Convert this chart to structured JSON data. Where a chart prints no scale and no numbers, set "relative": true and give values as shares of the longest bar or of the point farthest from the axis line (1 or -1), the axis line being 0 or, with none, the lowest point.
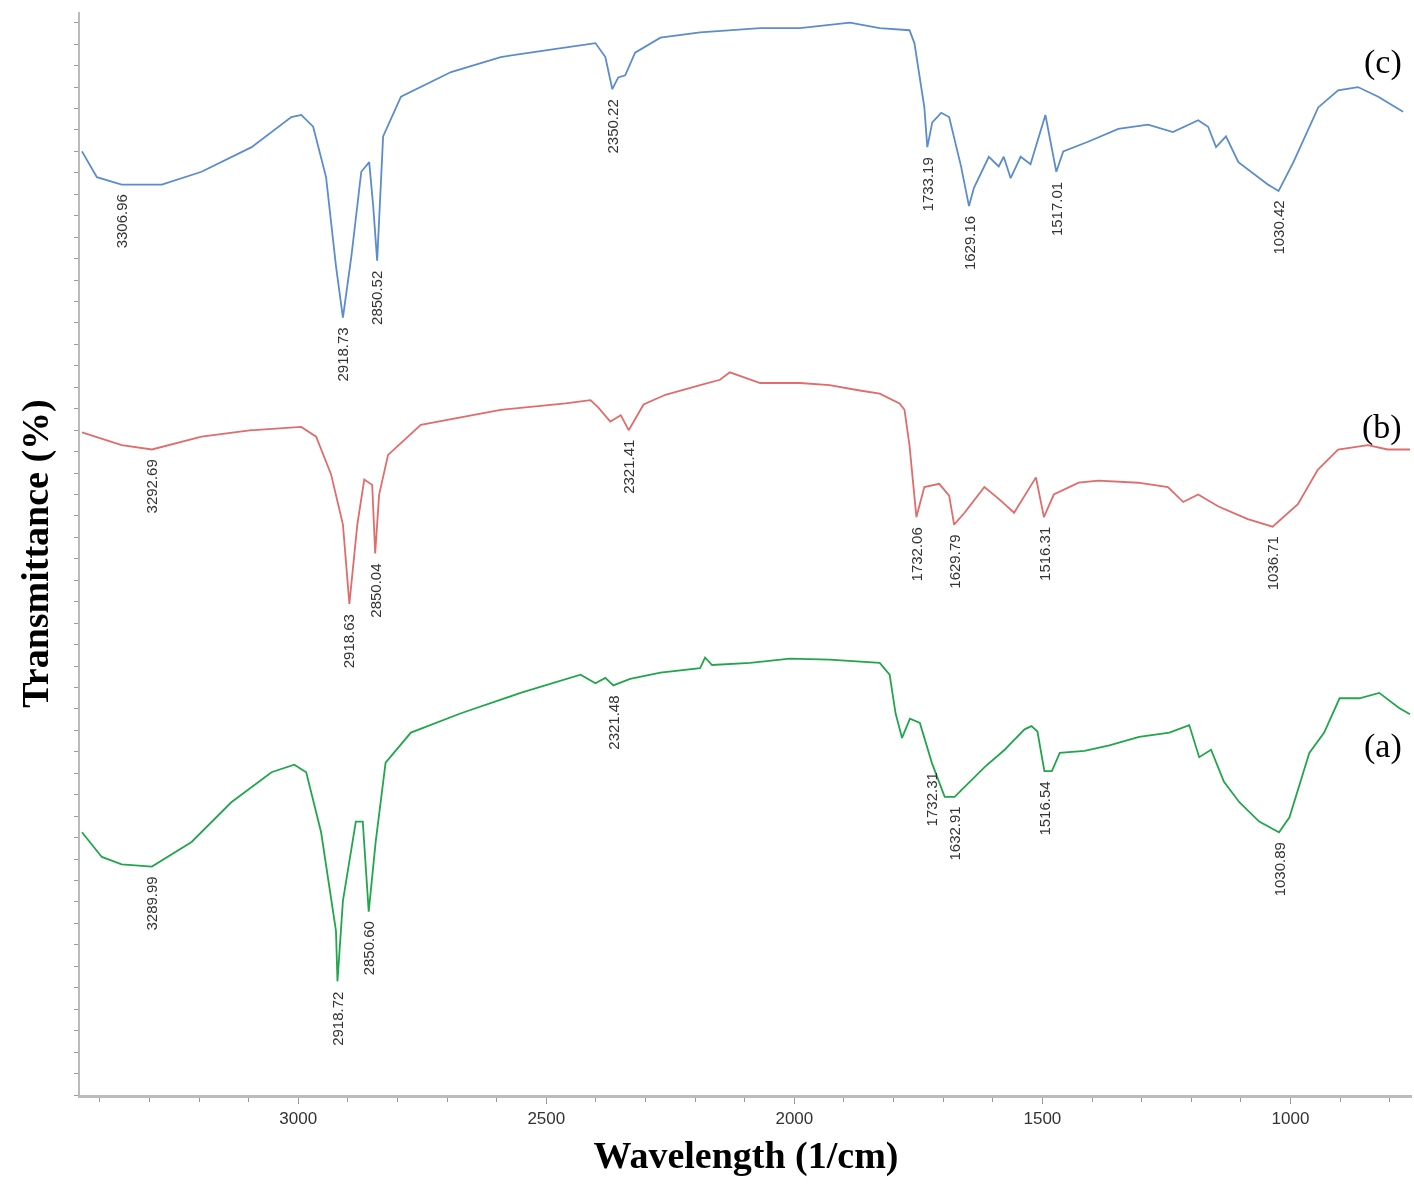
{
  "chart_data": {
    "type": "line",
    "relative": true,
    "xlabel": "Wavelength (1/cm)",
    "ylabel": "Transmittance (%)",
    "xlim": [
      3440,
      755
    ],
    "xticks": [
      3000,
      2500,
      2000,
      1500,
      1000
    ],
    "grid": false,
    "legend": false,
    "marker": "none",
    "line_style": "solid",
    "series": [
      {
        "name": "(c)",
        "color": "#5b8ccb",
        "x": [
          3436,
          3406,
          3356,
          3275,
          3195,
          3094,
          3014,
          2994,
          2970,
          2944,
          2924,
          2910,
          2893,
          2873,
          2857,
          2849,
          2841,
          2829,
          2793,
          2692,
          2592,
          2491,
          2401,
          2381,
          2367,
          2355,
          2341,
          2321,
          2270,
          2190,
          2069,
          1989,
          1888,
          1828,
          1768,
          1758,
          1738,
          1732,
          1722,
          1704,
          1688,
          1664,
          1648,
          1638,
          1608,
          1588,
          1578,
          1564,
          1544,
          1524,
          1494,
          1472,
          1458,
          1408,
          1347,
          1287,
          1237,
          1186,
          1166,
          1150,
          1130,
          1105,
          1045,
          1024,
          994,
          944,
          904,
          864,
          823,
          773
        ],
        "values": [
          0.88,
          0.856,
          0.849,
          0.849,
          0.861,
          0.884,
          0.912,
          0.914,
          0.903,
          0.856,
          0.773,
          0.725,
          0.782,
          0.861,
          0.87,
          0.829,
          0.778,
          0.894,
          0.931,
          0.954,
          0.968,
          0.975,
          0.981,
          0.968,
          0.938,
          0.949,
          0.951,
          0.972,
          0.986,
          0.991,
          0.995,
          0.995,
          1,
          0.995,
          0.993,
          0.981,
          0.921,
          0.884,
          0.907,
          0.916,
          0.912,
          0.866,
          0.829,
          0.846,
          0.875,
          0.866,
          0.875,
          0.855,
          0.875,
          0.868,
          0.914,
          0.861,
          0.88,
          0.889,
          0.901,
          0.905,
          0.898,
          0.909,
          0.903,
          0.884,
          0.894,
          0.87,
          0.849,
          0.843,
          0.87,
          0.921,
          0.937,
          0.94,
          0.931,
          0.917
        ]
      },
      {
        "name": "(b)",
        "color": "#e06c6c",
        "x": [
          3436,
          3356,
          3295,
          3195,
          3094,
          2994,
          2964,
          2934,
          2910,
          2897,
          2881,
          2867,
          2851,
          2845,
          2837,
          2819,
          2753,
          2592,
          2461,
          2411,
          2395,
          2371,
          2350,
          2334,
          2304,
          2260,
          2190,
          2150,
          2130,
          2069,
          1989,
          1929,
          1868,
          1828,
          1788,
          1778,
          1768,
          1754,
          1738,
          1708,
          1688,
          1678,
          1657,
          1617,
          1588,
          1557,
          1513,
          1497,
          1477,
          1427,
          1387,
          1307,
          1247,
          1216,
          1186,
          1146,
          1086,
          1036,
          985,
          945,
          904,
          844,
          804,
          759
        ],
        "values": [
          0.618,
          0.606,
          0.602,
          0.614,
          0.62,
          0.623,
          0.614,
          0.579,
          0.532,
          0.458,
          0.532,
          0.574,
          0.569,
          0.505,
          0.56,
          0.597,
          0.625,
          0.639,
          0.645,
          0.648,
          0.641,
          0.628,
          0.634,
          0.62,
          0.644,
          0.653,
          0.662,
          0.667,
          0.674,
          0.664,
          0.664,
          0.662,
          0.657,
          0.654,
          0.645,
          0.639,
          0.606,
          0.539,
          0.567,
          0.57,
          0.559,
          0.532,
          0.543,
          0.567,
          0.556,
          0.543,
          0.576,
          0.539,
          0.56,
          0.571,
          0.573,
          0.571,
          0.567,
          0.553,
          0.56,
          0.549,
          0.537,
          0.53,
          0.551,
          0.583,
          0.602,
          0.606,
          0.602,
          0.602
        ]
      },
      {
        "name": "(a)",
        "color": "#22a64c",
        "x": [
          3436,
          3396,
          3356,
          3295,
          3215,
          3135,
          3054,
          3008,
          2984,
          2954,
          2924,
          2921,
          2910,
          2884,
          2870,
          2858,
          2844,
          2824,
          2773,
          2672,
          2552,
          2431,
          2401,
          2381,
          2365,
          2331,
          2270,
          2190,
          2180,
          2166,
          2089,
          2009,
          1929,
          1828,
          1808,
          1796,
          1783,
          1767,
          1747,
          1723,
          1697,
          1677,
          1616,
          1576,
          1536,
          1522,
          1510,
          1496,
          1481,
          1465,
          1415,
          1365,
          1305,
          1244,
          1204,
          1184,
          1160,
          1134,
          1103,
          1063,
          1023,
          1002,
          962,
          932,
          901,
          861,
          821,
          781,
          759
        ],
        "values": [
          0.245,
          0.222,
          0.215,
          0.213,
          0.236,
          0.273,
          0.301,
          0.308,
          0.301,
          0.245,
          0.153,
          0.106,
          0.181,
          0.255,
          0.255,
          0.171,
          0.236,
          0.31,
          0.338,
          0.356,
          0.375,
          0.392,
          0.384,
          0.389,
          0.382,
          0.388,
          0.394,
          0.398,
          0.408,
          0.401,
          0.403,
          0.407,
          0.406,
          0.403,
          0.392,
          0.356,
          0.333,
          0.351,
          0.347,
          0.31,
          0.278,
          0.278,
          0.306,
          0.322,
          0.341,
          0.344,
          0.339,
          0.302,
          0.302,
          0.319,
          0.321,
          0.326,
          0.334,
          0.338,
          0.345,
          0.315,
          0.322,
          0.292,
          0.273,
          0.255,
          0.245,
          0.259,
          0.319,
          0.338,
          0.37,
          0.37,
          0.375,
          0.361,
          0.355
        ]
      }
    ],
    "annotations": [
      {
        "text": "3306.96",
        "x": 3356,
        "y": 0.849
      },
      {
        "text": "2918.73",
        "x": 2910,
        "y": 0.725
      },
      {
        "text": "2850.52",
        "x": 2841,
        "y": 0.778
      },
      {
        "text": "2350.22",
        "x": 2367,
        "y": 0.938
      },
      {
        "text": "1733.19",
        "x": 1732,
        "y": 0.884
      },
      {
        "text": "1629.16",
        "x": 1648,
        "y": 0.829
      },
      {
        "text": "1517.01",
        "x": 1472,
        "y": 0.861
      },
      {
        "text": "1030.42",
        "x": 1024,
        "y": 0.843
      },
      {
        "text": "3292.69",
        "x": 3295,
        "y": 0.602
      },
      {
        "text": "2918.63",
        "x": 2897,
        "y": 0.458
      },
      {
        "text": "2850.04",
        "x": 2845,
        "y": 0.505
      },
      {
        "text": "2321.41",
        "x": 2334,
        "y": 0.62
      },
      {
        "text": "1732.06",
        "x": 1754,
        "y": 0.539
      },
      {
        "text": "1629.79",
        "x": 1678,
        "y": 0.532
      },
      {
        "text": "1516.31",
        "x": 1497,
        "y": 0.539
      },
      {
        "text": "1036.71",
        "x": 1036,
        "y": 0.53
      },
      {
        "text": "3289.99",
        "x": 3295,
        "y": 0.213
      },
      {
        "text": "2918.72",
        "x": 2921,
        "y": 0.106
      },
      {
        "text": "2850.60",
        "x": 2858,
        "y": 0.171
      },
      {
        "text": "2321.48",
        "x": 2365,
        "y": 0.382
      },
      {
        "text": "1732.31",
        "x": 1723,
        "y": 0.31
      },
      {
        "text": "1632.91",
        "x": 1677,
        "y": 0.278
      },
      {
        "text": "1516.54",
        "x": 1496,
        "y": 0.302
      },
      {
        "text": "1030.89",
        "x": 1023,
        "y": 0.245
      }
    ]
  }
}
